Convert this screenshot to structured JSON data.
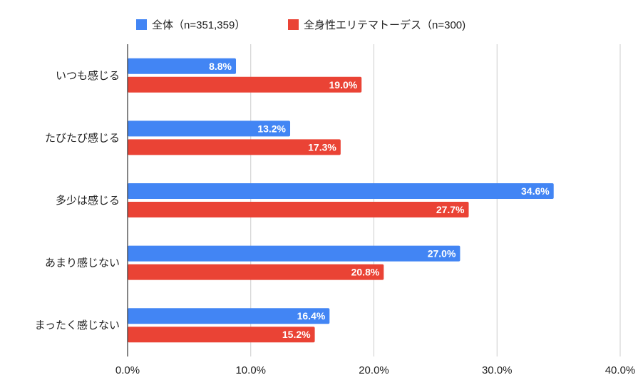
{
  "chart_data": {
    "type": "bar",
    "orientation": "horizontal",
    "title": "",
    "xlabel": "",
    "ylabel": "",
    "categories": [
      "いつも感じる",
      "たびたび感じる",
      "多少は感じる",
      "あまり感じない",
      "まったく感じない"
    ],
    "series": [
      {
        "name": "全体（n=351,359）",
        "color": "#4285f4",
        "values": [
          8.8,
          13.2,
          34.6,
          27.0,
          16.4
        ]
      },
      {
        "name": "全身性エリテマトーデス（n=300)",
        "color": "#ea4335",
        "values": [
          19.0,
          17.3,
          27.7,
          20.8,
          15.2
        ]
      }
    ],
    "value_format": "percent_1dp",
    "xlim": [
      0,
      40
    ],
    "x_ticks": [
      0,
      10,
      20,
      30,
      40
    ],
    "x_tick_labels": [
      "0.0%",
      "10.0%",
      "20.0%",
      "30.0%",
      "40.0%"
    ],
    "grid": true,
    "legend_position": "top",
    "data_labels": true
  }
}
